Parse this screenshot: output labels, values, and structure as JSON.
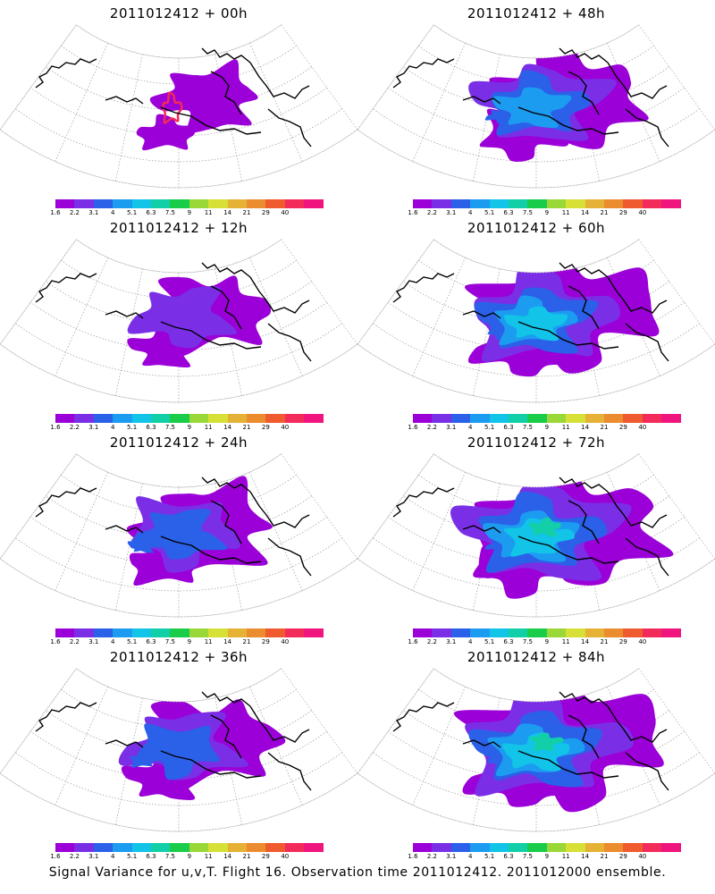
{
  "footer": "Signal Variance for u,v,T. Flight 16. Observation time 2011012412. 2011012000 ensemble.",
  "colorbar": {
    "colors": [
      "#9b00d8",
      "#7a2fe6",
      "#2b60e8",
      "#1c9cf0",
      "#11c4e8",
      "#12cfa8",
      "#19cd4a",
      "#9ad838",
      "#d6e036",
      "#e6b236",
      "#eb8c2f",
      "#ef5a2f",
      "#f22b5a",
      "#f0147e"
    ],
    "labels": [
      "1.6",
      "2.2",
      "3.1",
      "4",
      "5.1",
      "6.3",
      "7.5",
      "9",
      "11",
      "14",
      "21",
      "29",
      "40"
    ]
  },
  "panels": [
    {
      "id": "p00",
      "title": "2011012412 + 00h",
      "col": 0,
      "row": 0,
      "level": 0
    },
    {
      "id": "p48",
      "title": "2011012412 + 48h",
      "col": 1,
      "row": 0,
      "level": 3
    },
    {
      "id": "p12",
      "title": "2011012412 + 12h",
      "col": 0,
      "row": 1,
      "level": 1
    },
    {
      "id": "p60",
      "title": "2011012412 + 60h",
      "col": 1,
      "row": 1,
      "level": 4
    },
    {
      "id": "p24",
      "title": "2011012412 + 24h",
      "col": 0,
      "row": 2,
      "level": 2
    },
    {
      "id": "p72",
      "title": "2011012412 + 72h",
      "col": 1,
      "row": 2,
      "level": 5
    },
    {
      "id": "p36",
      "title": "2011012412 + 36h",
      "col": 0,
      "row": 3,
      "level": 2
    },
    {
      "id": "p84",
      "title": "2011012412 + 84h",
      "col": 1,
      "row": 3,
      "level": 5
    }
  ]
}
